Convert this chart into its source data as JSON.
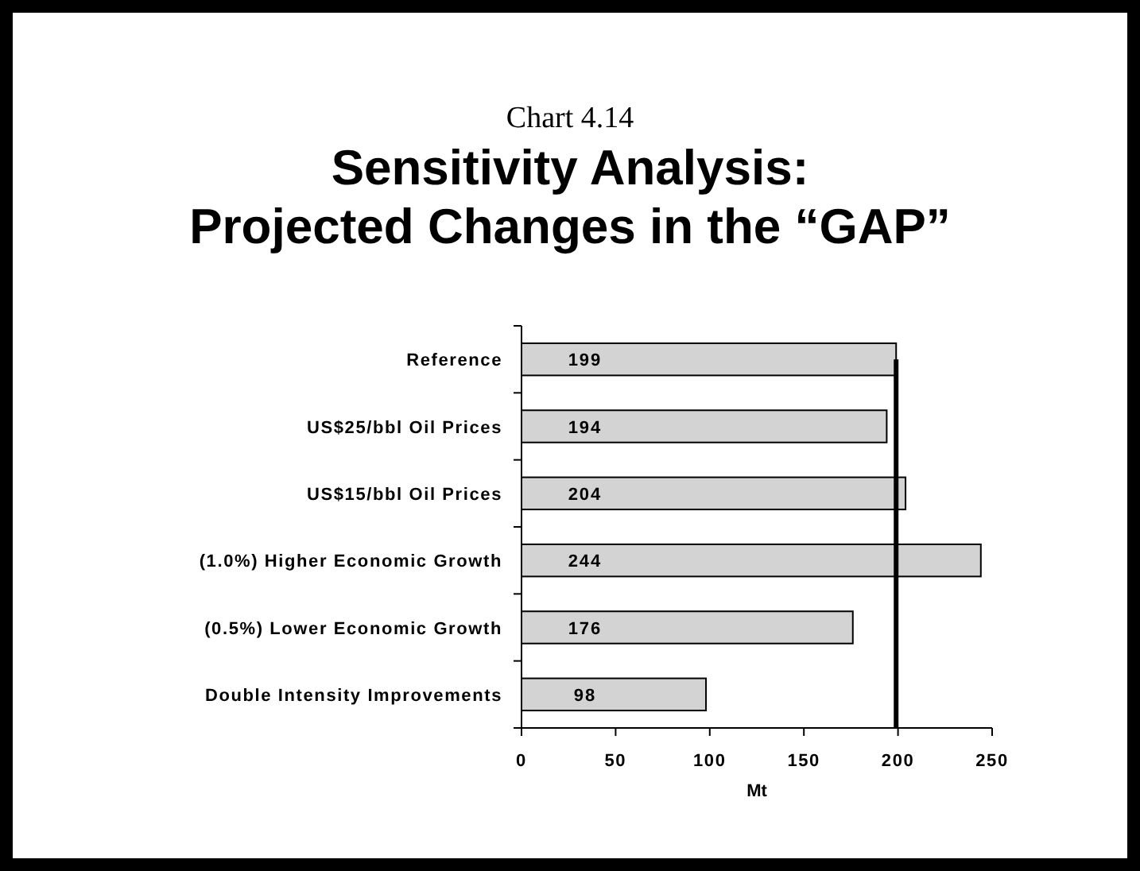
{
  "chart_data": {
    "type": "bar",
    "orientation": "horizontal",
    "annotations": [
      "Chart 4.14"
    ],
    "title": "Sensitivity Analysis: Projected Changes in the “GAP”",
    "xlabel": "Mt",
    "categories": [
      "Reference",
      "US$25/bbl Oil Prices",
      "US$15/bbl Oil Prices",
      "(1.0%) Higher Economic Growth",
      "(0.5%) Lower Economic Growth",
      "Double Intensity Improvements"
    ],
    "values": [
      199,
      194,
      204,
      244,
      176,
      98
    ],
    "color": "#d3d3d3",
    "data_labels": true,
    "xlim": [
      0,
      250
    ],
    "xticks": [
      0,
      50,
      100,
      150,
      200,
      250
    ],
    "ref_lines": [
      {
        "axis": "x",
        "value": 199,
        "color": "#000000"
      }
    ]
  }
}
